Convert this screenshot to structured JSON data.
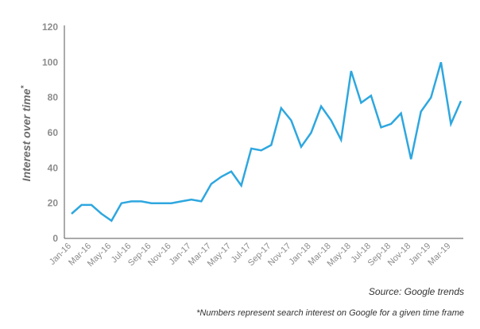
{
  "chart_data": {
    "type": "line",
    "ylabel": "Interest over time",
    "ylabel_marker": "*",
    "ylim": [
      0,
      120
    ],
    "y_ticks": [
      0,
      20,
      40,
      60,
      80,
      100,
      120
    ],
    "grid": false,
    "line_color": "#2ea7df",
    "axis_color": "#555555",
    "x_tick_labels": [
      "Jan-16",
      "Mar-16",
      "May-16",
      "Jul-16",
      "Sep-16",
      "Nov-16",
      "Jan-17",
      "Mar-17",
      "May-17",
      "Jul-17",
      "Sep-17",
      "Nov-17",
      "Jan-18",
      "Mar-18",
      "May-18",
      "Jul-18",
      "Sep-18",
      "Nov-18",
      "Jan-19",
      "Mar-19"
    ],
    "series": [
      {
        "x": [
          "Jan-16",
          "Feb-16",
          "Mar-16",
          "Apr-16",
          "May-16",
          "Jun-16",
          "Jul-16",
          "Aug-16",
          "Sep-16",
          "Oct-16",
          "Nov-16",
          "Dec-16",
          "Jan-17",
          "Feb-17",
          "Mar-17",
          "Apr-17",
          "May-17",
          "Jun-17",
          "Jul-17",
          "Aug-17",
          "Sep-17",
          "Oct-17",
          "Nov-17",
          "Dec-17",
          "Jan-18",
          "Feb-18",
          "Mar-18",
          "Apr-18",
          "May-18",
          "Jun-18",
          "Jul-18",
          "Aug-18",
          "Sep-18",
          "Oct-18",
          "Nov-18",
          "Dec-18",
          "Jan-19",
          "Feb-19",
          "Mar-19",
          "Apr-19"
        ],
        "values": [
          14,
          19,
          19,
          14,
          10,
          20,
          21,
          21,
          20,
          20,
          20,
          21,
          22,
          21,
          31,
          35,
          38,
          30,
          51,
          50,
          53,
          74,
          67,
          52,
          60,
          75,
          67,
          56,
          95,
          77,
          81,
          63,
          65,
          71,
          45,
          72,
          80,
          100,
          65,
          78
        ]
      }
    ]
  },
  "source": "Source: Google trends",
  "footnote": "*Numbers represent search interest on Google for a given time frame"
}
